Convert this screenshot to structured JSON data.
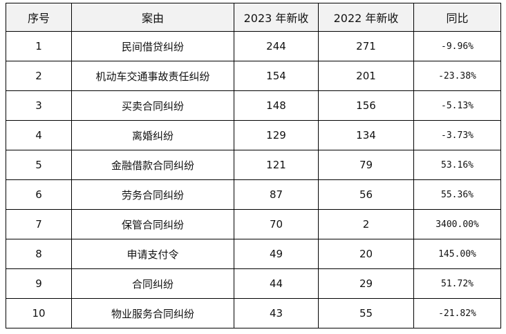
{
  "table": {
    "headers": [
      "序号",
      "案由",
      "2023 年新收",
      "2022 年新收",
      "同比"
    ],
    "rows": [
      {
        "index": "1",
        "cause": "民间借贷纠纷",
        "y2023": "244",
        "y2022": "271",
        "yoy": "-9.96%"
      },
      {
        "index": "2",
        "cause": "机动车交通事故责任纠纷",
        "y2023": "154",
        "y2022": "201",
        "yoy": "-23.38%"
      },
      {
        "index": "3",
        "cause": "买卖合同纠纷",
        "y2023": "148",
        "y2022": "156",
        "yoy": "-5.13%"
      },
      {
        "index": "4",
        "cause": "离婚纠纷",
        "y2023": "129",
        "y2022": "134",
        "yoy": "-3.73%"
      },
      {
        "index": "5",
        "cause": "金融借款合同纠纷",
        "y2023": "121",
        "y2022": "79",
        "yoy": "53.16%"
      },
      {
        "index": "6",
        "cause": "劳务合同纠纷",
        "y2023": "87",
        "y2022": "56",
        "yoy": "55.36%"
      },
      {
        "index": "7",
        "cause": "保管合同纠纷",
        "y2023": "70",
        "y2022": "2",
        "yoy": "3400.00%"
      },
      {
        "index": "8",
        "cause": "申请支付令",
        "y2023": "49",
        "y2022": "20",
        "yoy": "145.00%"
      },
      {
        "index": "9",
        "cause": "合同纠纷",
        "y2023": "44",
        "y2022": "29",
        "yoy": "51.72%"
      },
      {
        "index": "10",
        "cause": "物业服务合同纠纷",
        "y2023": "43",
        "y2022": "55",
        "yoy": "-21.82%"
      }
    ]
  }
}
